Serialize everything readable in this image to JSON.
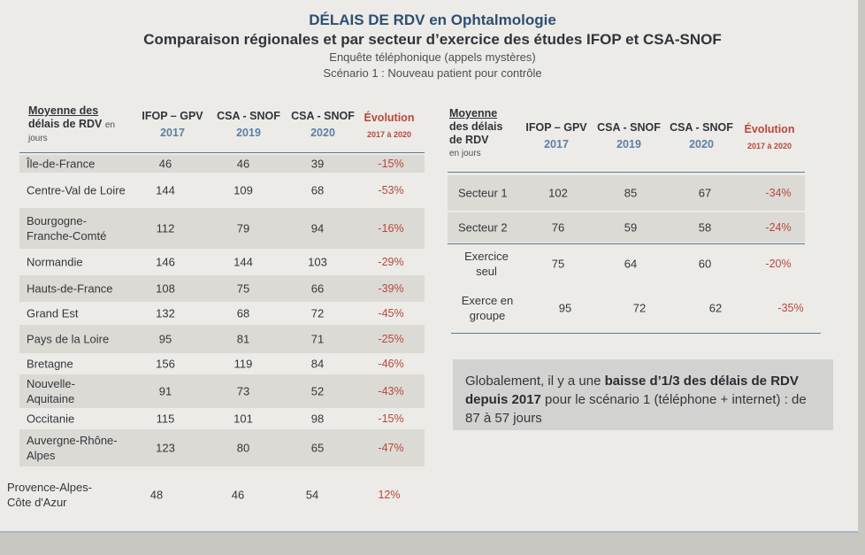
{
  "header": {
    "title": "DÉLAIS DE RDV en Ophtalmologie",
    "subtitle": "Comparaison régionales et par secteur d’exercice des études IFOP et CSA-SNOF",
    "line1": "Enquête téléphonique (appels mystères)",
    "line2": "Scénario 1 : Nouveau patient pour contrôle"
  },
  "regional": {
    "header_title_a": "Moyenne des",
    "header_title_b": "délais de RDV",
    "header_title_en": "en",
    "header_sub": "jours",
    "columns": [
      {
        "name": "IFOP – GPV",
        "year": "2017"
      },
      {
        "name": "CSA - SNOF",
        "year": "2019"
      },
      {
        "name": "CSA - SNOF",
        "year": "2020"
      },
      {
        "name": "Évolution",
        "year": "2017 à 2020"
      }
    ],
    "rows": [
      {
        "label": "Île-de-France",
        "v1": "46",
        "v2": "46",
        "v3": "39",
        "evo": "-15%"
      },
      {
        "label": "Centre-Val de Loire",
        "v1": "144",
        "v2": "109",
        "v3": "68",
        "evo": "-53%"
      },
      {
        "label": "Bourgogne-Franche-Comté",
        "v1": "112",
        "v2": "79",
        "v3": "94",
        "evo": "-16%"
      },
      {
        "label": "Normandie",
        "v1": "146",
        "v2": "144",
        "v3": "103",
        "evo": "-29%"
      },
      {
        "label": "Hauts-de-France",
        "v1": "108",
        "v2": "75",
        "v3": "66",
        "evo": "-39%"
      },
      {
        "label": "Grand Est",
        "v1": "132",
        "v2": "68",
        "v3": "72",
        "evo": "-45%"
      },
      {
        "label": "Pays de la Loire",
        "v1": "95",
        "v2": "81",
        "v3": "71",
        "evo": "-25%"
      },
      {
        "label": "Bretagne",
        "v1": "156",
        "v2": "119",
        "v3": "84",
        "evo": "-46%"
      },
      {
        "label": "Nouvelle-Aquitaine",
        "v1": "91",
        "v2": "73",
        "v3": "52",
        "evo": "-43%"
      },
      {
        "label": "Occitanie",
        "v1": "115",
        "v2": "101",
        "v3": "98",
        "evo": "-15%"
      },
      {
        "label": "Auvergne-Rhône-Alpes",
        "v1": "123",
        "v2": "80",
        "v3": "65",
        "evo": "-47%"
      },
      {
        "label": "Provence-Alpes-Côte d'Azur",
        "v1": "48",
        "v2": "46",
        "v3": "54",
        "evo": "12%"
      }
    ]
  },
  "sector": {
    "header_title_a": "Moyenne",
    "header_title_b": "des délais",
    "header_title_c": "de RDV",
    "header_sub": "en jours",
    "columns": [
      {
        "name": "IFOP – GPV",
        "year": "2017"
      },
      {
        "name": "CSA - SNOF",
        "year": "2019"
      },
      {
        "name": "CSA - SNOF",
        "year": "2020"
      },
      {
        "name": "Évolution",
        "year": "2017 à 2020"
      }
    ],
    "rows": [
      {
        "label": "Secteur 1",
        "v1": "102",
        "v2": "85",
        "v3": "67",
        "evo": "-34%"
      },
      {
        "label": "Secteur 2",
        "v1": "76",
        "v2": "59",
        "v3": "58",
        "evo": "-24%"
      },
      {
        "label": "Exercice seul",
        "v1": "75",
        "v2": "64",
        "v3": "60",
        "evo": "-20%"
      },
      {
        "label": "Exerce en groupe",
        "v1": "95",
        "v2": "72",
        "v3": "62",
        "evo": "-35%"
      }
    ]
  },
  "note": {
    "pre": "Globalement, il y a une ",
    "bold": "baisse d’1/3 des délais de RDV depuis 2017",
    "post": " pour le scénario 1 (téléphone + internet) : de 87 à 57 jours"
  }
}
